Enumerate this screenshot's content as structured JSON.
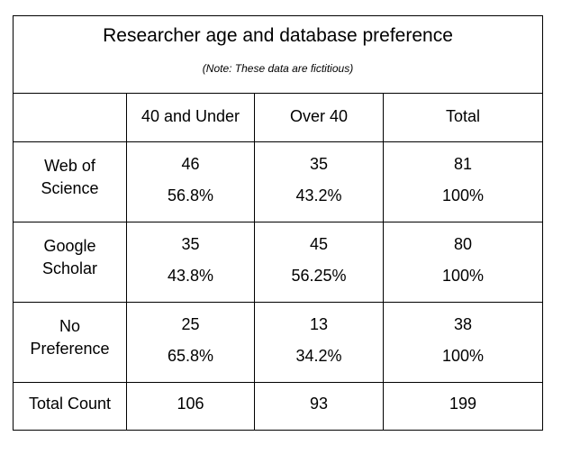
{
  "chart_data": {
    "type": "table",
    "title": "Researcher age and database preference",
    "note": "(Note: These data are  fictitious)",
    "columns": [
      "40 and Under",
      "Over 40",
      "Total"
    ],
    "rows": [
      {
        "label_lines": [
          "Web of",
          "Science"
        ],
        "counts": [
          "46",
          "35",
          "81"
        ],
        "percents": [
          "56.8%",
          "43.2%",
          "100%"
        ]
      },
      {
        "label_lines": [
          "Google",
          "Scholar"
        ],
        "counts": [
          "35",
          "45",
          "80"
        ],
        "percents": [
          "43.8%",
          "56.25%",
          "100%"
        ]
      },
      {
        "label_lines": [
          "No",
          "Preference"
        ],
        "counts": [
          "25",
          "13",
          "38"
        ],
        "percents": [
          "65.8%",
          "34.2%",
          "100%"
        ]
      }
    ],
    "total_row": {
      "label": "Total Count",
      "counts": [
        "106",
        "93",
        "199"
      ]
    }
  }
}
